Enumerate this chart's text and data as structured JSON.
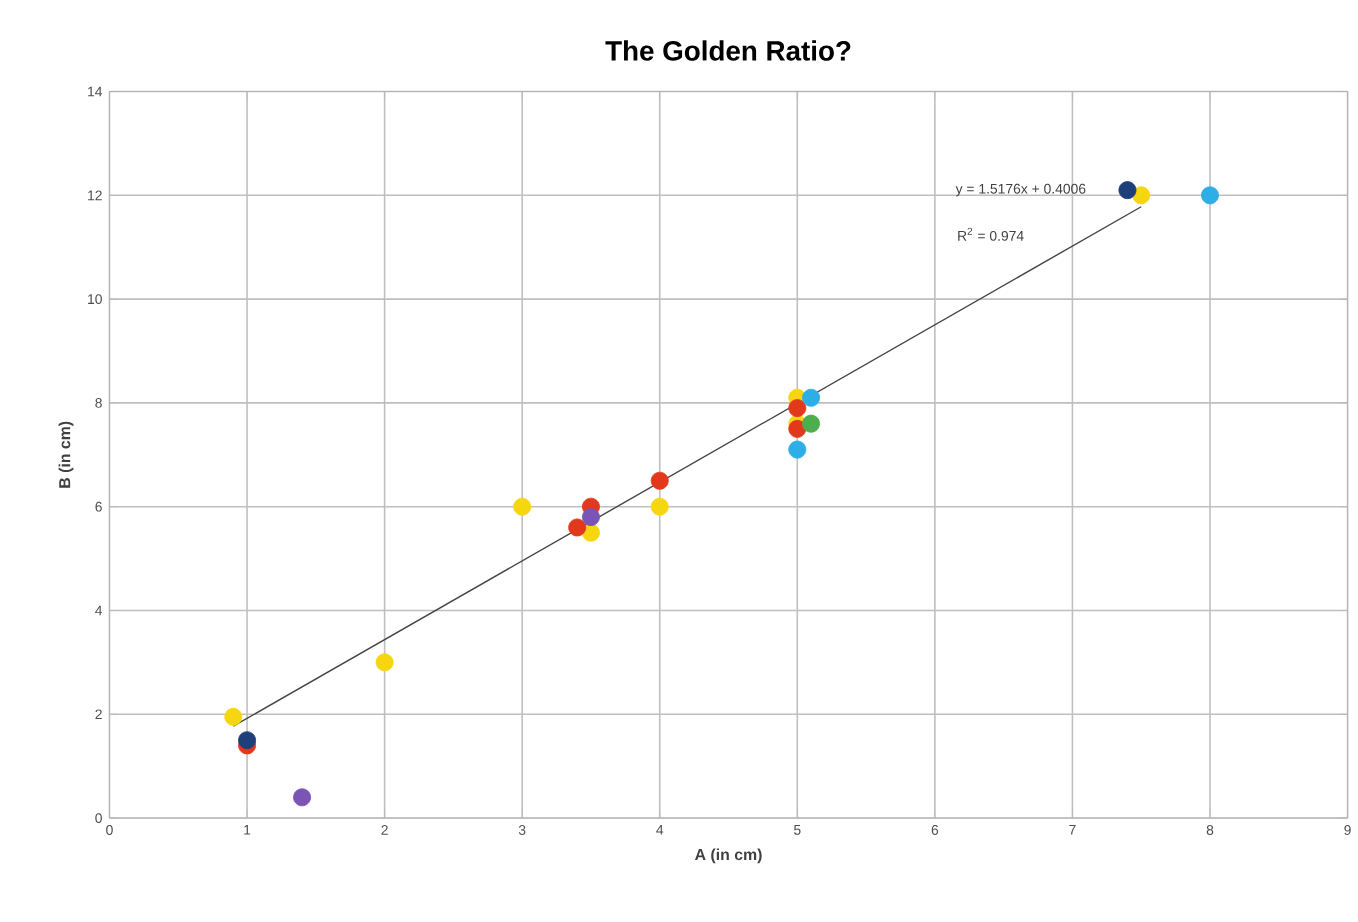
{
  "chart_data": {
    "type": "scatter",
    "title": "The Golden Ratio?",
    "xlabel": "A (in cm)",
    "ylabel": "B (in cm)",
    "xlim": [
      0,
      9
    ],
    "ylim": [
      0,
      14
    ],
    "xticks": [
      0,
      1,
      2,
      3,
      4,
      5,
      6,
      7,
      8,
      9
    ],
    "yticks": [
      0,
      2,
      4,
      6,
      8,
      10,
      12,
      14
    ],
    "grid": true,
    "marker": "circle",
    "annotations": [
      "y = 1.5176x + 0.4006",
      "R$^{2}$ = 0.974"
    ],
    "series": [
      {
        "color": "#444444",
        "type": "line",
        "marker": "none",
        "x": [
          0.9,
          7.5
        ],
        "values": [
          1.77,
          11.78
        ]
      },
      {
        "color": "#f5d611",
        "x": [
          0.9,
          2,
          3,
          3.5,
          4,
          5,
          5,
          7.5
        ],
        "values": [
          1.95,
          3,
          6,
          5.5,
          6,
          8.1,
          7.6,
          12
        ]
      },
      {
        "color": "#e2391c",
        "x": [
          1,
          3.4,
          3.5,
          4,
          5,
          5
        ],
        "values": [
          1.4,
          5.6,
          6.0,
          6.5,
          7.9,
          7.5
        ]
      },
      {
        "color": "#1f3f7a",
        "x": [
          1,
          7.4
        ],
        "values": [
          1.5,
          12.1
        ]
      },
      {
        "color": "#7a55b5",
        "x": [
          1.4,
          3.5
        ],
        "values": [
          0.4,
          5.8
        ]
      },
      {
        "color": "#2eaee6",
        "x": [
          5.1,
          5,
          8
        ],
        "values": [
          8.1,
          7.1,
          12
        ]
      },
      {
        "color": "#4cae4f",
        "x": [
          5.1
        ],
        "values": [
          7.6
        ]
      }
    ]
  }
}
